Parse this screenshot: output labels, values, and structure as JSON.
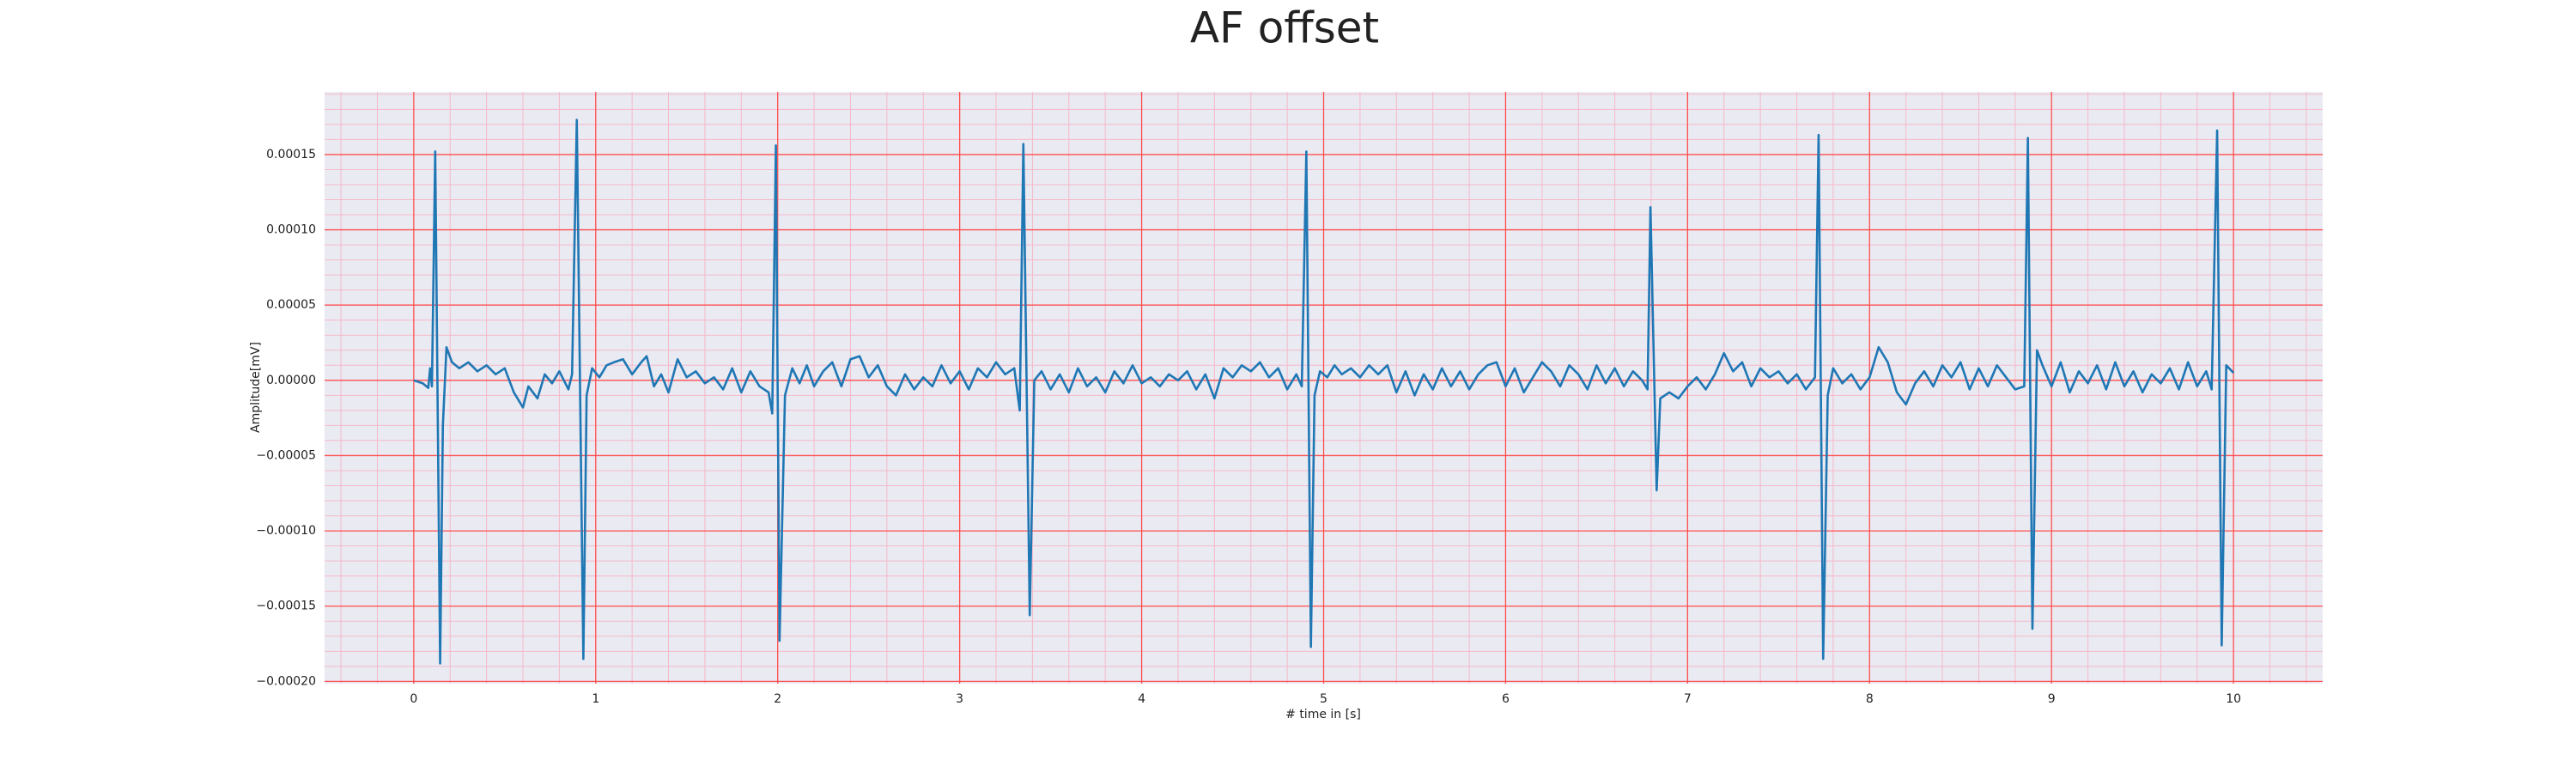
{
  "chart_data": {
    "type": "line",
    "title": "AF offset",
    "xlabel": "# time in [s]",
    "ylabel": "Amplitude[mV]",
    "color": "#1f77b4",
    "grid": true,
    "grid_color": "#ff4d4d",
    "minor_grid": true,
    "xlim": [
      -0.49,
      10.49
    ],
    "ylim": [
      -0.0002015,
      0.0001916
    ],
    "xticks": [
      0,
      1,
      2,
      3,
      4,
      5,
      6,
      7,
      8,
      9,
      10
    ],
    "yticks": [
      {
        "value": -0.0002,
        "label": "−0.00020"
      },
      {
        "value": -0.00015,
        "label": "−0.00015"
      },
      {
        "value": -0.0001,
        "label": "−0.00010"
      },
      {
        "value": -5e-05,
        "label": "−0.00005"
      },
      {
        "value": 0,
        "label": "0.00000"
      },
      {
        "value": 5e-05,
        "label": "0.00005"
      },
      {
        "value": 0.0001,
        "label": "0.00010"
      },
      {
        "value": 0.00015,
        "label": "0.00015"
      }
    ],
    "x": [
      0,
      0.05,
      0.08,
      0.09,
      0.1,
      0.118,
      0.145,
      0.16,
      0.18,
      0.21,
      0.25,
      0.3,
      0.35,
      0.4,
      0.45,
      0.5,
      0.55,
      0.6,
      0.63,
      0.68,
      0.72,
      0.76,
      0.8,
      0.85,
      0.87,
      0.896,
      0.932,
      0.95,
      0.98,
      1.02,
      1.06,
      1.1,
      1.15,
      1.2,
      1.25,
      1.28,
      1.32,
      1.36,
      1.4,
      1.45,
      1.5,
      1.55,
      1.6,
      1.65,
      1.7,
      1.75,
      1.8,
      1.85,
      1.9,
      1.95,
      1.97,
      1.99,
      2.01,
      2.04,
      2.08,
      2.12,
      2.16,
      2.2,
      2.25,
      2.3,
      2.35,
      2.4,
      2.45,
      2.5,
      2.55,
      2.6,
      2.65,
      2.7,
      2.75,
      2.8,
      2.85,
      2.9,
      2.95,
      3.0,
      3.05,
      3.1,
      3.15,
      3.2,
      3.25,
      3.3,
      3.33,
      3.35,
      3.385,
      3.41,
      3.45,
      3.5,
      3.55,
      3.6,
      3.65,
      3.7,
      3.75,
      3.8,
      3.85,
      3.9,
      3.95,
      4.0,
      4.05,
      4.1,
      4.15,
      4.2,
      4.25,
      4.3,
      4.35,
      4.4,
      4.45,
      4.5,
      4.55,
      4.6,
      4.65,
      4.7,
      4.75,
      4.8,
      4.85,
      4.88,
      4.905,
      4.93,
      4.95,
      4.98,
      5.02,
      5.06,
      5.1,
      5.15,
      5.2,
      5.25,
      5.3,
      5.35,
      5.4,
      5.45,
      5.5,
      5.55,
      5.6,
      5.65,
      5.7,
      5.75,
      5.8,
      5.85,
      5.9,
      5.95,
      6.0,
      6.05,
      6.1,
      6.15,
      6.2,
      6.25,
      6.3,
      6.35,
      6.4,
      6.45,
      6.5,
      6.55,
      6.6,
      6.65,
      6.7,
      6.75,
      6.78,
      6.796,
      6.83,
      6.85,
      6.9,
      6.95,
      7.0,
      7.05,
      7.1,
      7.15,
      7.2,
      7.25,
      7.3,
      7.35,
      7.4,
      7.45,
      7.5,
      7.55,
      7.6,
      7.65,
      7.7,
      7.72,
      7.745,
      7.77,
      7.8,
      7.85,
      7.9,
      7.95,
      8.0,
      8.05,
      8.1,
      8.15,
      8.2,
      8.25,
      8.3,
      8.35,
      8.4,
      8.45,
      8.5,
      8.55,
      8.6,
      8.65,
      8.7,
      8.75,
      8.8,
      8.85,
      8.87,
      8.895,
      8.92,
      8.95,
      9.0,
      9.05,
      9.1,
      9.15,
      9.2,
      9.25,
      9.3,
      9.35,
      9.4,
      9.45,
      9.5,
      9.55,
      9.6,
      9.65,
      9.7,
      9.75,
      9.8,
      9.85,
      9.88,
      9.91,
      9.935,
      9.96,
      10.0
    ],
    "values": [
      0,
      -2e-06,
      -5e-06,
      8e-06,
      -4e-06,
      0.000152,
      -0.000188,
      -3e-05,
      2.2e-05,
      1.2e-05,
      8e-06,
      1.2e-05,
      6e-06,
      1e-05,
      4e-06,
      8e-06,
      -8e-06,
      -1.8e-05,
      -4e-06,
      -1.2e-05,
      4e-06,
      -2e-06,
      6e-06,
      -6e-06,
      4e-06,
      0.000173,
      -0.000185,
      -1e-05,
      8e-06,
      2e-06,
      1e-05,
      1.2e-05,
      1.4e-05,
      4e-06,
      1.2e-05,
      1.6e-05,
      -4e-06,
      4e-06,
      -8e-06,
      1.4e-05,
      2e-06,
      6e-06,
      -2e-06,
      2e-06,
      -6e-06,
      8e-06,
      -8e-06,
      6e-06,
      -4e-06,
      -8e-06,
      -2.2e-05,
      0.000156,
      -0.000173,
      -1e-05,
      8e-06,
      -2e-06,
      1e-05,
      -4e-06,
      6e-06,
      1.2e-05,
      -4e-06,
      1.4e-05,
      1.6e-05,
      2e-06,
      1e-05,
      -4e-06,
      -1e-05,
      4e-06,
      -6e-06,
      2e-06,
      -4e-06,
      1e-05,
      -2e-06,
      6e-06,
      -6e-06,
      8e-06,
      2e-06,
      1.2e-05,
      4e-06,
      8e-06,
      -2e-05,
      0.000157,
      -0.000156,
      0,
      6e-06,
      -6e-06,
      4e-06,
      -8e-06,
      8e-06,
      -4e-06,
      2e-06,
      -8e-06,
      6e-06,
      -2e-06,
      1e-05,
      -2e-06,
      2e-06,
      -4e-06,
      4e-06,
      0,
      6e-06,
      -6e-06,
      4e-06,
      -1.2e-05,
      8e-06,
      2e-06,
      1e-05,
      6e-06,
      1.2e-05,
      2e-06,
      8e-06,
      -6e-06,
      4e-06,
      -4e-06,
      0.000152,
      -0.000177,
      -1e-05,
      6e-06,
      2e-06,
      1e-05,
      4e-06,
      8e-06,
      2e-06,
      1e-05,
      4e-06,
      1e-05,
      -8e-06,
      6e-06,
      -1e-05,
      4e-06,
      -6e-06,
      8e-06,
      -4e-06,
      6e-06,
      -6e-06,
      4e-06,
      1e-05,
      1.2e-05,
      -4e-06,
      8e-06,
      -8e-06,
      2e-06,
      1.2e-05,
      6e-06,
      -4e-06,
      1e-05,
      4e-06,
      -6e-06,
      1e-05,
      -2e-06,
      8e-06,
      -4e-06,
      6e-06,
      0,
      -6e-06,
      0.000115,
      -7.3e-05,
      -1.2e-05,
      -8e-06,
      -1.2e-05,
      -4e-06,
      2e-06,
      -6e-06,
      4e-06,
      1.8e-05,
      6e-06,
      1.2e-05,
      -4e-06,
      8e-06,
      2e-06,
      6e-06,
      -2e-06,
      4e-06,
      -6e-06,
      2e-06,
      0.000163,
      -0.000185,
      -1e-05,
      8e-06,
      -2e-06,
      4e-06,
      -6e-06,
      2e-06,
      2.2e-05,
      1.2e-05,
      -8e-06,
      -1.6e-05,
      -2e-06,
      6e-06,
      -4e-06,
      1e-05,
      2e-06,
      1.2e-05,
      -6e-06,
      8e-06,
      -4e-06,
      1e-05,
      2e-06,
      -6e-06,
      -4e-06,
      0.000161,
      -0.000165,
      2e-05,
      1e-05,
      -4e-06,
      1.2e-05,
      -8e-06,
      6e-06,
      -2e-06,
      1e-05,
      -6e-06,
      1.2e-05,
      -4e-06,
      6e-06,
      -8e-06,
      4e-06,
      -2e-06,
      8e-06,
      -6e-06,
      1.2e-05,
      -4e-06,
      6e-06,
      -6e-06,
      0.000166,
      -0.000176,
      1e-05,
      5e-06
    ]
  }
}
